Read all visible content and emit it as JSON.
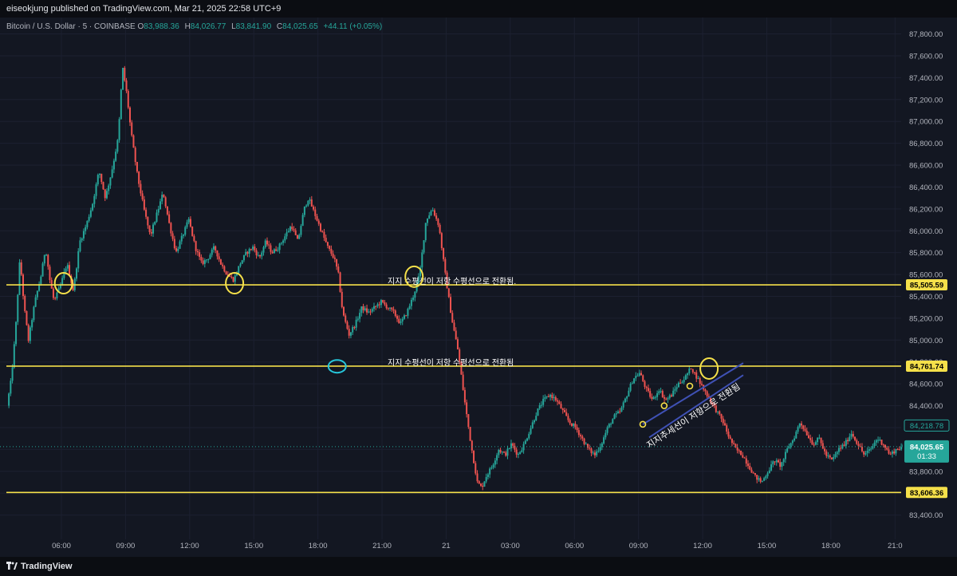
{
  "publish_line": "eiseokjung published on TradingView.com, Mar 21, 2025 22:58 UTC+9",
  "legend": {
    "symbol": "Bitcoin / U.S. Dollar · 5 · COINBASE",
    "o_label": "O",
    "o_value": "83,988.36",
    "h_label": "H",
    "h_value": "84,026.77",
    "l_label": "L",
    "l_value": "83,841.90",
    "c_label": "C",
    "c_value": "84,025.65",
    "change": "+44.11 (+0.05%)"
  },
  "footer": {
    "brand": "TradingView",
    "logo_icon": "tradingview-logo-icon"
  },
  "colors": {
    "background": "#131722",
    "up": "#26a69a",
    "down": "#ef5350",
    "level_line": "#f5e04a",
    "circle_cyan": "#26c6da",
    "channel": "#3f51b5"
  },
  "chart_data": {
    "type": "candlestick",
    "x_unit": "hours from 2025-03-20 03:00",
    "price_axis": {
      "range": [
        83200,
        87950
      ],
      "ticks": [
        "87,800.00",
        "87,600.00",
        "87,400.00",
        "87,200.00",
        "87,000.00",
        "86,800.00",
        "86,600.00",
        "86,400.00",
        "86,200.00",
        "86,000.00",
        "85,800.00",
        "85,600.00",
        "85,400.00",
        "85,200.00",
        "85,000.00",
        "84,800.00",
        "84,600.00",
        "84,400.00",
        "84,200.00",
        "84,000.00",
        "83,800.00",
        "83,600.00",
        "83,400.00"
      ],
      "tick_values": [
        87800,
        87600,
        87400,
        87200,
        87000,
        86800,
        86600,
        86400,
        86200,
        86000,
        85800,
        85600,
        85400,
        85200,
        85000,
        84800,
        84600,
        84400,
        84200,
        84000,
        83800,
        83600,
        83400
      ]
    },
    "time_axis": {
      "range": [
        0.5,
        42.4
      ],
      "labels": [
        "06:00",
        "09:00",
        "12:00",
        "15:00",
        "18:00",
        "21:00",
        "21",
        "03:00",
        "06:00",
        "09:00",
        "12:00",
        "15:00",
        "18:00",
        "21:0"
      ],
      "hours": [
        3,
        6,
        9,
        12,
        15,
        18,
        21,
        24,
        27,
        30,
        33,
        36,
        39,
        42
      ]
    },
    "price_path": [
      [
        0.5,
        84400
      ],
      [
        0.7,
        84650
      ],
      [
        0.9,
        85100
      ],
      [
        1.1,
        85750
      ],
      [
        1.3,
        85300
      ],
      [
        1.5,
        85000
      ],
      [
        1.8,
        85350
      ],
      [
        2.1,
        85600
      ],
      [
        2.3,
        85850
      ],
      [
        2.5,
        85550
      ],
      [
        2.7,
        85350
      ],
      [
        3.0,
        85500
      ],
      [
        3.3,
        85700
      ],
      [
        3.6,
        85450
      ],
      [
        3.9,
        85900
      ],
      [
        4.2,
        86050
      ],
      [
        4.5,
        86250
      ],
      [
        4.8,
        86550
      ],
      [
        5.1,
        86300
      ],
      [
        5.4,
        86550
      ],
      [
        5.7,
        86850
      ],
      [
        5.9,
        87500
      ],
      [
        6.1,
        87250
      ],
      [
        6.3,
        86900
      ],
      [
        6.6,
        86500
      ],
      [
        6.9,
        86200
      ],
      [
        7.2,
        85950
      ],
      [
        7.5,
        86150
      ],
      [
        7.8,
        86350
      ],
      [
        8.1,
        86050
      ],
      [
        8.4,
        85800
      ],
      [
        8.7,
        85950
      ],
      [
        9.0,
        86100
      ],
      [
        9.3,
        85850
      ],
      [
        9.6,
        85700
      ],
      [
        9.9,
        85750
      ],
      [
        10.2,
        85850
      ],
      [
        10.5,
        85700
      ],
      [
        10.8,
        85600
      ],
      [
        11.1,
        85550
      ],
      [
        11.4,
        85700
      ],
      [
        11.7,
        85800
      ],
      [
        12.0,
        85850
      ],
      [
        12.3,
        85750
      ],
      [
        12.6,
        85900
      ],
      [
        12.9,
        85800
      ],
      [
        13.2,
        85850
      ],
      [
        13.5,
        85950
      ],
      [
        13.8,
        86050
      ],
      [
        14.1,
        85900
      ],
      [
        14.4,
        86200
      ],
      [
        14.6,
        86300
      ],
      [
        14.9,
        86150
      ],
      [
        15.2,
        86000
      ],
      [
        15.5,
        85850
      ],
      [
        15.8,
        85750
      ],
      [
        16.0,
        85600
      ],
      [
        16.2,
        85250
      ],
      [
        16.5,
        85050
      ],
      [
        16.8,
        85150
      ],
      [
        17.1,
        85300
      ],
      [
        17.4,
        85250
      ],
      [
        17.7,
        85300
      ],
      [
        18.0,
        85350
      ],
      [
        18.3,
        85300
      ],
      [
        18.6,
        85250
      ],
      [
        18.9,
        85150
      ],
      [
        19.2,
        85250
      ],
      [
        19.5,
        85400
      ],
      [
        19.8,
        85600
      ],
      [
        20.1,
        86100
      ],
      [
        20.4,
        86200
      ],
      [
        20.7,
        86050
      ],
      [
        21.0,
        85600
      ],
      [
        21.3,
        85200
      ],
      [
        21.6,
        84900
      ],
      [
        21.9,
        84450
      ],
      [
        22.2,
        84050
      ],
      [
        22.5,
        83700
      ],
      [
        22.7,
        83650
      ],
      [
        22.9,
        83750
      ],
      [
        23.2,
        83850
      ],
      [
        23.5,
        84000
      ],
      [
        23.8,
        83950
      ],
      [
        24.1,
        84050
      ],
      [
        24.4,
        83950
      ],
      [
        24.7,
        84050
      ],
      [
        25.0,
        84200
      ],
      [
        25.3,
        84350
      ],
      [
        25.6,
        84450
      ],
      [
        25.9,
        84500
      ],
      [
        26.2,
        84450
      ],
      [
        26.5,
        84350
      ],
      [
        26.8,
        84250
      ],
      [
        27.1,
        84200
      ],
      [
        27.4,
        84100
      ],
      [
        27.7,
        84000
      ],
      [
        28.0,
        83950
      ],
      [
        28.3,
        84050
      ],
      [
        28.6,
        84200
      ],
      [
        28.9,
        84300
      ],
      [
        29.2,
        84350
      ],
      [
        29.5,
        84500
      ],
      [
        29.8,
        84650
      ],
      [
        30.1,
        84700
      ],
      [
        30.4,
        84550
      ],
      [
        30.7,
        84450
      ],
      [
        31.0,
        84550
      ],
      [
        31.3,
        84450
      ],
      [
        31.6,
        84500
      ],
      [
        31.9,
        84600
      ],
      [
        32.2,
        84650
      ],
      [
        32.5,
        84750
      ],
      [
        32.8,
        84650
      ],
      [
        33.1,
        84550
      ],
      [
        33.4,
        84450
      ],
      [
        33.7,
        84350
      ],
      [
        34.0,
        84250
      ],
      [
        34.3,
        84100
      ],
      [
        34.6,
        84000
      ],
      [
        34.9,
        83950
      ],
      [
        35.2,
        83850
      ],
      [
        35.5,
        83750
      ],
      [
        35.8,
        83700
      ],
      [
        36.1,
        83800
      ],
      [
        36.4,
        83900
      ],
      [
        36.7,
        83850
      ],
      [
        37.0,
        84000
      ],
      [
        37.3,
        84100
      ],
      [
        37.6,
        84250
      ],
      [
        37.9,
        84150
      ],
      [
        38.2,
        84050
      ],
      [
        38.5,
        84100
      ],
      [
        38.8,
        83950
      ],
      [
        39.1,
        83900
      ],
      [
        39.4,
        84000
      ],
      [
        39.7,
        84050
      ],
      [
        40.0,
        84150
      ],
      [
        40.3,
        84050
      ],
      [
        40.6,
        83950
      ],
      [
        40.9,
        84000
      ],
      [
        41.2,
        84100
      ],
      [
        41.5,
        84050
      ],
      [
        41.8,
        83950
      ],
      [
        42.1,
        84000
      ],
      [
        42.4,
        84025.65
      ]
    ],
    "horizontal_levels": [
      {
        "price": 85505.59,
        "label": "85,505.59",
        "note": "지지 수평선이 저항 수평선으로 전환됨."
      },
      {
        "price": 84761.74,
        "label": "84,761.74",
        "note": "지지 수평선이 저항 수평선으로 전환됨"
      },
      {
        "price": 83606.36,
        "label": "83,606.36",
        "note": ""
      }
    ],
    "price_badges": [
      {
        "price": 84218.78,
        "label": "84,218.78",
        "style": "outline"
      },
      {
        "price": 84025.65,
        "label": "84,025.65",
        "sub": "01:33",
        "style": "filled"
      }
    ],
    "annotations": {
      "yellow_circles": [
        [
          3.1,
          85520
        ],
        [
          11.1,
          85520
        ],
        [
          19.5,
          85580
        ],
        [
          33.3,
          84740
        ]
      ],
      "cyan_circle": [
        15.9,
        84760
      ],
      "channel_line_1": [
        [
          30.2,
          84230
        ],
        [
          34.9,
          84790
        ]
      ],
      "channel_line_2": [
        [
          30.5,
          84110
        ],
        [
          34.9,
          84680
        ]
      ],
      "channel_points": [
        [
          30.2,
          84230
        ],
        [
          31.2,
          84400
        ],
        [
          32.4,
          84580
        ]
      ],
      "channel_text": "지지추세선이 저항으로 전환됨"
    }
  }
}
